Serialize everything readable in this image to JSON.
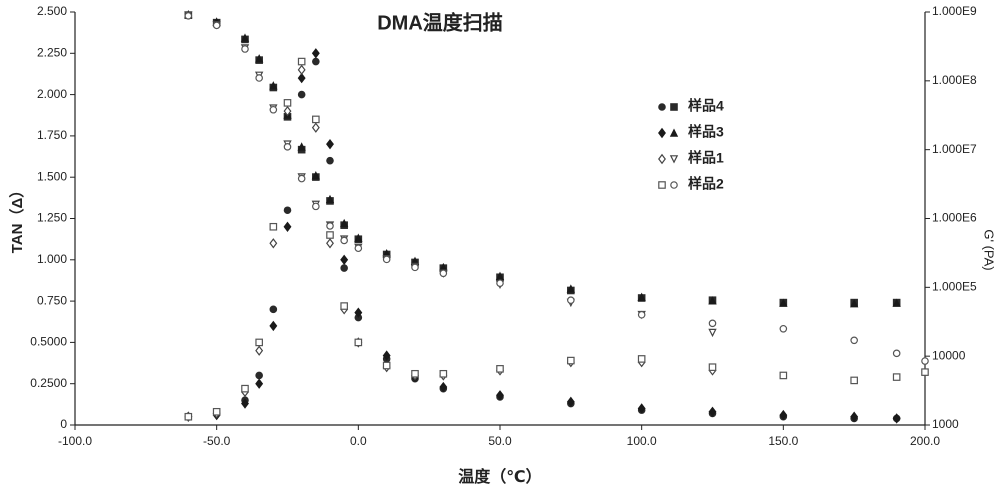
{
  "chart_data": {
    "type": "scatter",
    "title": "DMA温度扫描",
    "x_label": "温度（℃）",
    "y_label": "TAN（Δ）",
    "y2_label": "G' (PA)",
    "x": [
      -60,
      -50,
      -40,
      -35,
      -30,
      -25,
      -20,
      -15,
      -10,
      -5,
      0,
      10,
      20,
      30,
      50,
      75,
      100,
      125,
      150,
      175,
      190,
      200
    ],
    "xlim": [
      -100,
      200
    ],
    "xticks": [
      {
        "value": -100,
        "label": "-100.0"
      },
      {
        "value": -50,
        "label": "-50.0"
      },
      {
        "value": 0,
        "label": "0.0"
      },
      {
        "value": 50,
        "label": "50.0"
      },
      {
        "value": 100,
        "label": "100.0"
      },
      {
        "value": 150,
        "label": "150.0"
      },
      {
        "value": 200,
        "label": "200.0"
      }
    ],
    "ylim": [
      0,
      2.5
    ],
    "yticks": [
      0,
      {
        "value": 0.25,
        "label": "0.2500"
      },
      {
        "value": 0.5,
        "label": "0.5000"
      },
      {
        "value": 0.75,
        "label": "0.750"
      },
      {
        "value": 1,
        "label": "1.000"
      },
      {
        "value": 1.25,
        "label": "1.250"
      },
      {
        "value": 1.5,
        "label": "1.500"
      },
      {
        "value": 1.75,
        "label": "1.750"
      },
      {
        "value": 2,
        "label": "2.000"
      },
      {
        "value": 2.25,
        "label": "2.250"
      },
      {
        "value": 2.5,
        "label": "2.500"
      }
    ],
    "y2lim": [
      1000,
      1000000000
    ],
    "y2_log": true,
    "y2ticks": [
      1000,
      10000,
      {
        "value": 100000,
        "label": "1.000E5"
      },
      {
        "value": 1000000,
        "label": "1.000E6"
      },
      {
        "value": 10000000,
        "label": "1.000E7"
      },
      {
        "value": 100000000,
        "label": "1.000E8"
      },
      {
        "value": 1000000000,
        "label": "1.000E9"
      }
    ],
    "series": [
      {
        "name": "样品4",
        "color": "#2a2a2a",
        "filled": true,
        "markers": [
          "circle",
          "square"
        ],
        "values": [
          0.05,
          0.07,
          0.15,
          0.3,
          0.7,
          1.3,
          2.0,
          2.2,
          1.6,
          0.95,
          0.65,
          0.4,
          0.28,
          0.22,
          0.17,
          0.13,
          0.09,
          0.07,
          0.05,
          0.04,
          0.04,
          null
        ],
        "g_values": [
          900000000,
          700000000,
          400000000,
          200000000,
          80000000,
          30000000,
          10000000,
          4000000,
          1800000,
          800000,
          500000,
          300000,
          230000,
          190000,
          140000,
          90000,
          70000,
          65000,
          60000,
          60000,
          60000,
          null
        ]
      },
      {
        "name": "样品3",
        "color": "#1a1a1a",
        "filled": true,
        "markers": [
          "diamond",
          "triangle"
        ],
        "values": [
          0.05,
          0.06,
          0.13,
          0.25,
          0.6,
          1.2,
          2.1,
          2.25,
          1.7,
          1.0,
          0.68,
          0.42,
          0.29,
          0.23,
          0.18,
          0.14,
          0.1,
          0.08,
          0.06,
          0.05,
          0.04,
          null
        ],
        "g_values": [
          920000000,
          720000000,
          420000000,
          210000000,
          85000000,
          32000000,
          11000000,
          4200000,
          1900000,
          850000,
          520000,
          310000,
          240000,
          195000,
          145000,
          95000,
          72000,
          64000,
          59000,
          58000,
          59000,
          null
        ]
      },
      {
        "name": "样品1",
        "color": "#444444",
        "filled": false,
        "markers": [
          "diamond",
          "triangle-down"
        ],
        "values": [
          0.05,
          0.07,
          0.2,
          0.45,
          1.1,
          1.9,
          2.15,
          1.8,
          1.1,
          0.7,
          0.5,
          0.35,
          0.3,
          0.3,
          0.33,
          0.38,
          0.38,
          0.33,
          null,
          null,
          null,
          null
        ],
        "g_values": [
          900000000,
          650000000,
          300000000,
          120000000,
          40000000,
          12000000,
          4000000,
          1600000,
          800000,
          500000,
          380000,
          260000,
          200000,
          160000,
          110000,
          60000,
          40000,
          22000,
          null,
          null,
          null,
          null
        ]
      },
      {
        "name": "样品2",
        "color": "#555555",
        "filled": false,
        "markers": [
          "square",
          "circle"
        ],
        "values": [
          0.05,
          0.08,
          0.22,
          0.5,
          1.2,
          1.95,
          2.2,
          1.85,
          1.15,
          0.72,
          0.5,
          0.36,
          0.31,
          0.31,
          0.34,
          0.39,
          0.4,
          0.35,
          0.3,
          0.27,
          0.29,
          0.32
        ],
        "g_values": [
          880000000,
          640000000,
          290000000,
          110000000,
          38000000,
          11000000,
          3800000,
          1500000,
          780000,
          480000,
          370000,
          255000,
          195000,
          160000,
          115000,
          65000,
          40000,
          30000,
          25000,
          17000,
          11000,
          8500
        ]
      }
    ]
  }
}
